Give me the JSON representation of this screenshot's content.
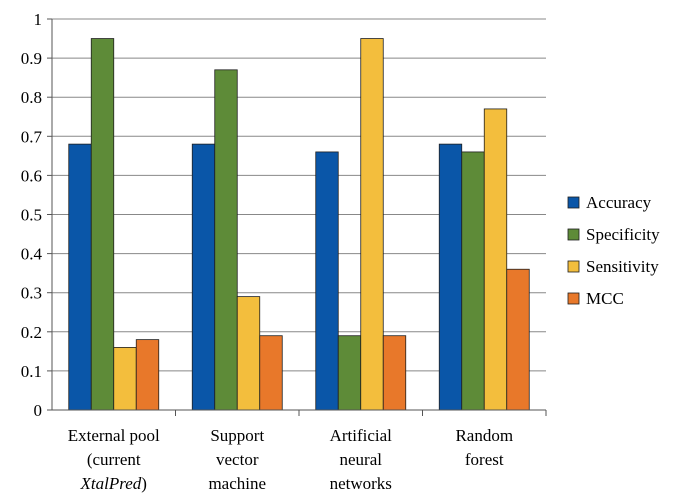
{
  "chart_data": {
    "type": "bar",
    "categories": [
      [
        "External pool",
        "(current",
        "XtalPred)"
      ],
      [
        "Support",
        "vector",
        "machine"
      ],
      [
        "Artificial",
        "neural",
        "networks"
      ],
      [
        "Random",
        "forest"
      ]
    ],
    "category_italic": [
      [
        false,
        false,
        true
      ],
      [
        false,
        false,
        false
      ],
      [
        false,
        false,
        false
      ],
      [
        false,
        false
      ]
    ],
    "category_paren_close": [
      [
        false,
        false,
        true
      ],
      [
        false,
        false,
        false
      ],
      [
        false,
        false,
        false
      ],
      [
        false,
        false
      ]
    ],
    "series": [
      {
        "name": "Accuracy",
        "color": "#0a56a8",
        "values": [
          0.68,
          0.68,
          0.66,
          0.68
        ]
      },
      {
        "name": "Specificity",
        "color": "#5e8b38",
        "values": [
          0.95,
          0.87,
          0.19,
          0.66
        ]
      },
      {
        "name": "Sensitivity",
        "color": "#f3be3d",
        "values": [
          0.16,
          0.29,
          0.95,
          0.77
        ]
      },
      {
        "name": "MCC",
        "color": "#e8782a",
        "values": [
          0.18,
          0.19,
          0.19,
          0.36
        ]
      }
    ],
    "ylim": [
      0,
      1
    ],
    "yticks": [
      "0",
      "0.1",
      "0.2",
      "0.3",
      "0.4",
      "0.5",
      "0.6",
      "0.7",
      "0.8",
      "0.9",
      "1"
    ],
    "grid": true,
    "legend_position": "right",
    "title": "",
    "xlabel": "",
    "ylabel": ""
  }
}
